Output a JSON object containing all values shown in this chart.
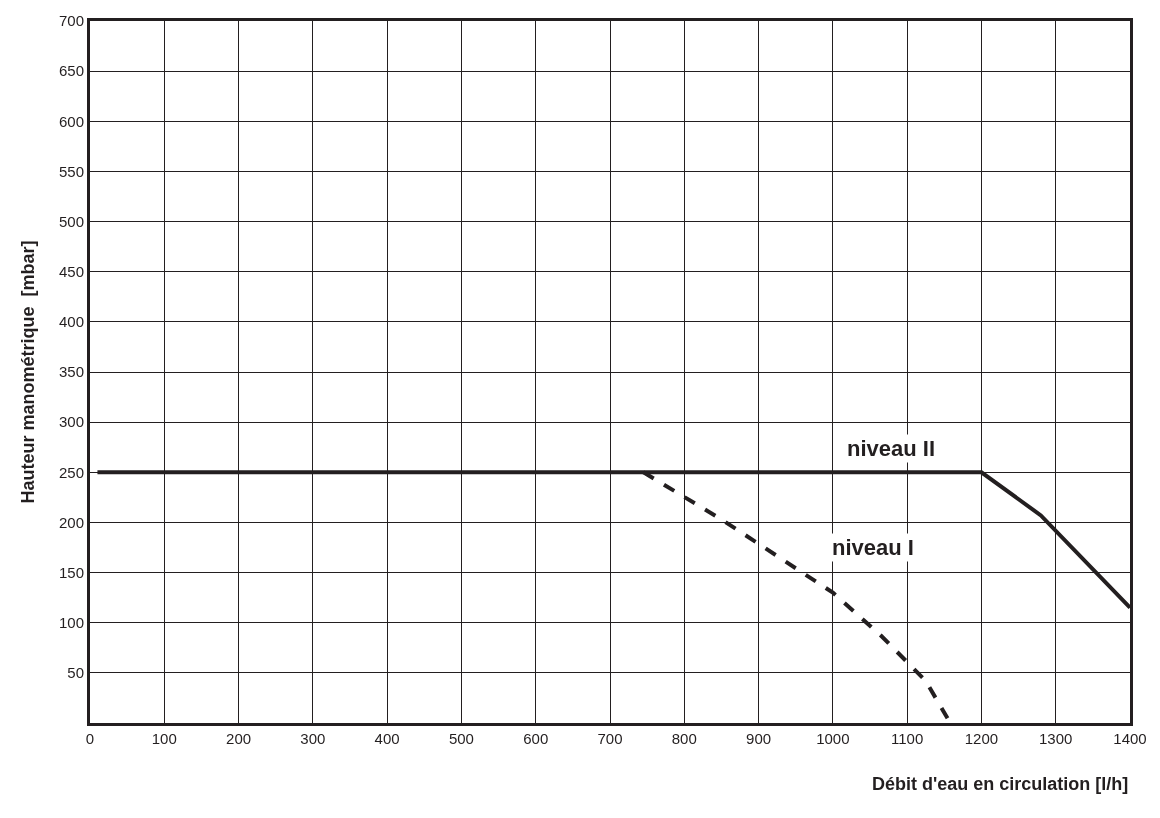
{
  "chart_data": {
    "type": "line",
    "xlabel": "Débit d'eau en circulation [l/h]",
    "ylabel": "Hauteur manométrique  [mbar]",
    "xlim": [
      0,
      1400
    ],
    "ylim": [
      0,
      700
    ],
    "xticks": [
      0,
      100,
      200,
      300,
      400,
      500,
      600,
      700,
      800,
      900,
      1000,
      1100,
      1200,
      1300,
      1400
    ],
    "yticks": [
      50,
      100,
      150,
      200,
      250,
      300,
      350,
      400,
      450,
      500,
      550,
      600,
      650,
      700
    ],
    "grid": true,
    "legend": false,
    "marker": "none",
    "series": [
      {
        "name": "niveau II",
        "color": "#231f20",
        "line_style": "solid",
        "x": [
          10,
          1200,
          1280,
          1400
        ],
        "values": [
          250,
          250,
          207,
          115
        ]
      },
      {
        "name": "niveau I",
        "color": "#231f20",
        "line_style": "dashed",
        "x": [
          745,
          850,
          1000,
          1065,
          1125,
          1158
        ],
        "values": [
          250,
          203,
          130,
          87,
          42,
          0
        ]
      }
    ]
  }
}
